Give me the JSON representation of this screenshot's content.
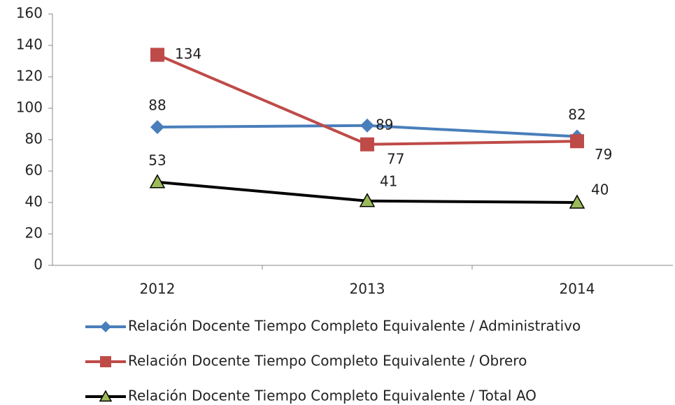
{
  "chart_data": {
    "type": "line",
    "categories": [
      "2012",
      "2013",
      "2014"
    ],
    "series": [
      {
        "name": "Relación Docente Tiempo Completo Equivalente / Administrativo",
        "color": "#4a7ebb",
        "marker": "diamond",
        "values": [
          88,
          89,
          82
        ]
      },
      {
        "name": "Relación Docente Tiempo Completo Equivalente / Obrero",
        "color": "#be4b48",
        "marker": "square",
        "values": [
          134,
          77,
          79
        ]
      },
      {
        "name": "Relación Docente Tiempo Completo Equivalente / Total AO",
        "color": "#000000",
        "marker": "triangle",
        "marker_color": "#9bbb59",
        "values": [
          53,
          41,
          40
        ]
      }
    ],
    "ylim": [
      0,
      160
    ],
    "yticks": [
      0,
      20,
      40,
      60,
      80,
      100,
      120,
      140,
      160
    ],
    "grid": false,
    "legend": "bottom"
  }
}
